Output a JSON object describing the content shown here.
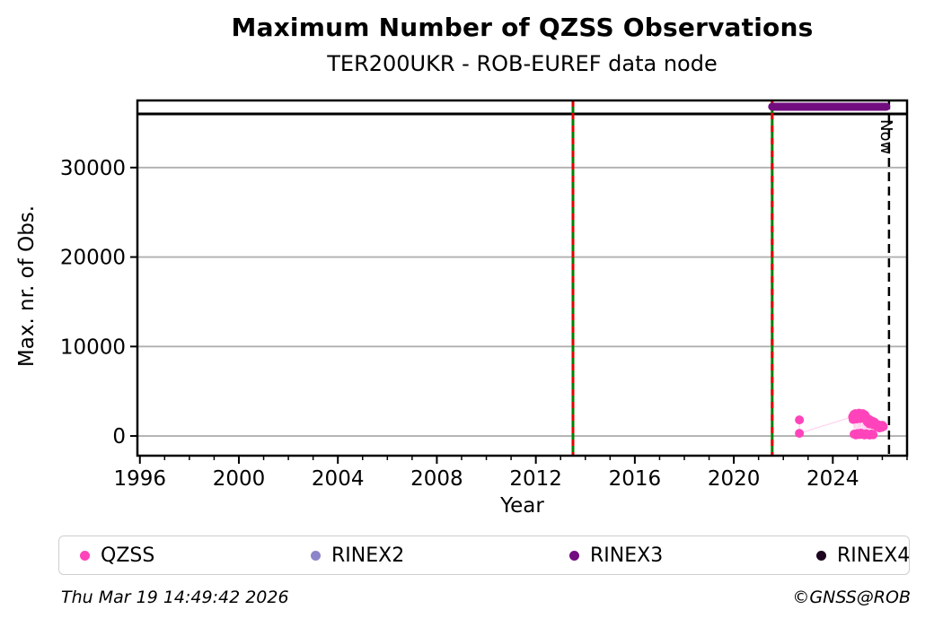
{
  "title": "Maximum Number of QZSS Observations",
  "subtitle": "TER200UKR - ROB-EUREF data node",
  "footer": {
    "timestamp": "Thu Mar 19 14:49:42 2026",
    "copyright": "©GNSS@ROB"
  },
  "legend": {
    "position": "bottom",
    "items": [
      {
        "label": "QZSS",
        "color": "#ff44bb"
      },
      {
        "label": "RINEX2",
        "color": "#8d85c9"
      },
      {
        "label": "RINEX3",
        "color": "#720d80"
      },
      {
        "label": "RINEX4",
        "color": "#1e0420"
      }
    ]
  },
  "chart_data": {
    "type": "scatter",
    "title": "Maximum Number of QZSS Observations",
    "subtitle": "TER200UKR - ROB-EUREF data node",
    "xlabel": "Year",
    "ylabel": "Max. nr. of Obs.",
    "xlim": [
      1995.9,
      2027.0
    ],
    "ylim": [
      -2200,
      37500
    ],
    "x_major_ticks": [
      1996,
      2000,
      2004,
      2008,
      2012,
      2016,
      2020,
      2024
    ],
    "x_minor_tick_interval": 1,
    "y_ticks": [
      0,
      10000,
      20000,
      30000
    ],
    "grid": "horizontal-only",
    "grid_color": "#b0b0b0",
    "frame_color": "#000000",
    "reference_lines": {
      "max_obs_line": {
        "orientation": "horizontal",
        "value": 36000,
        "color": "#000000"
      },
      "event_lines": [
        {
          "x": 2013.5,
          "style": "green-red-dashed",
          "green": "#008000",
          "red": "#e60000"
        },
        {
          "x": 2021.55,
          "style": "green-red-dashed",
          "green": "#008000",
          "red": "#e60000"
        }
      ],
      "now_line": {
        "x": 2026.27,
        "style": "black-dashed",
        "label": "Now"
      }
    },
    "series": [
      {
        "name": "QZSS",
        "color": "#ff44bb",
        "marker_radius": 5,
        "connect_line_opacity": 0.25,
        "points": [
          [
            2022.65,
            1800
          ],
          [
            2022.65,
            300
          ],
          [
            2024.8,
            2150
          ],
          [
            2024.82,
            1850
          ],
          [
            2024.85,
            2400
          ],
          [
            2024.88,
            2050
          ],
          [
            2024.91,
            2500
          ],
          [
            2024.94,
            2250
          ],
          [
            2024.97,
            1900
          ],
          [
            2025.0,
            2450
          ],
          [
            2025.03,
            2100
          ],
          [
            2025.06,
            2550
          ],
          [
            2025.09,
            2200
          ],
          [
            2025.12,
            1950
          ],
          [
            2025.15,
            2400
          ],
          [
            2025.18,
            2100
          ],
          [
            2025.21,
            2500
          ],
          [
            2025.24,
            2250
          ],
          [
            2025.27,
            1950
          ],
          [
            2025.3,
            2350
          ],
          [
            2025.33,
            2150
          ],
          [
            2024.86,
            200
          ],
          [
            2024.93,
            120
          ],
          [
            2025.0,
            280
          ],
          [
            2025.07,
            150
          ],
          [
            2025.14,
            320
          ],
          [
            2025.21,
            180
          ],
          [
            2025.28,
            120
          ],
          [
            2025.35,
            250
          ],
          [
            2025.42,
            160
          ],
          [
            2025.49,
            100
          ],
          [
            2025.56,
            220
          ],
          [
            2025.63,
            140
          ],
          [
            2025.36,
            1800
          ],
          [
            2025.4,
            1550
          ],
          [
            2025.44,
            1900
          ],
          [
            2025.48,
            1350
          ],
          [
            2025.52,
            1750
          ],
          [
            2025.56,
            1500
          ],
          [
            2025.6,
            1650
          ],
          [
            2025.64,
            1250
          ],
          [
            2025.68,
            1550
          ],
          [
            2025.72,
            1400
          ],
          [
            2025.76,
            1150
          ],
          [
            2025.8,
            1000
          ],
          [
            2025.84,
            1250
          ],
          [
            2025.88,
            900
          ],
          [
            2025.92,
            1100
          ],
          [
            2025.96,
            950
          ],
          [
            2026.0,
            1200
          ],
          [
            2026.04,
            1050
          ]
        ]
      },
      {
        "name": "RINEX2",
        "color": "#8d85c9",
        "points": []
      },
      {
        "name": "RINEX3",
        "color": "#720d80",
        "band": {
          "x_start": 2021.55,
          "x_end": 2026.16,
          "value": 36800,
          "thickness_px": 9
        },
        "points": []
      },
      {
        "name": "RINEX4",
        "color": "#1e0420",
        "points": []
      }
    ]
  }
}
